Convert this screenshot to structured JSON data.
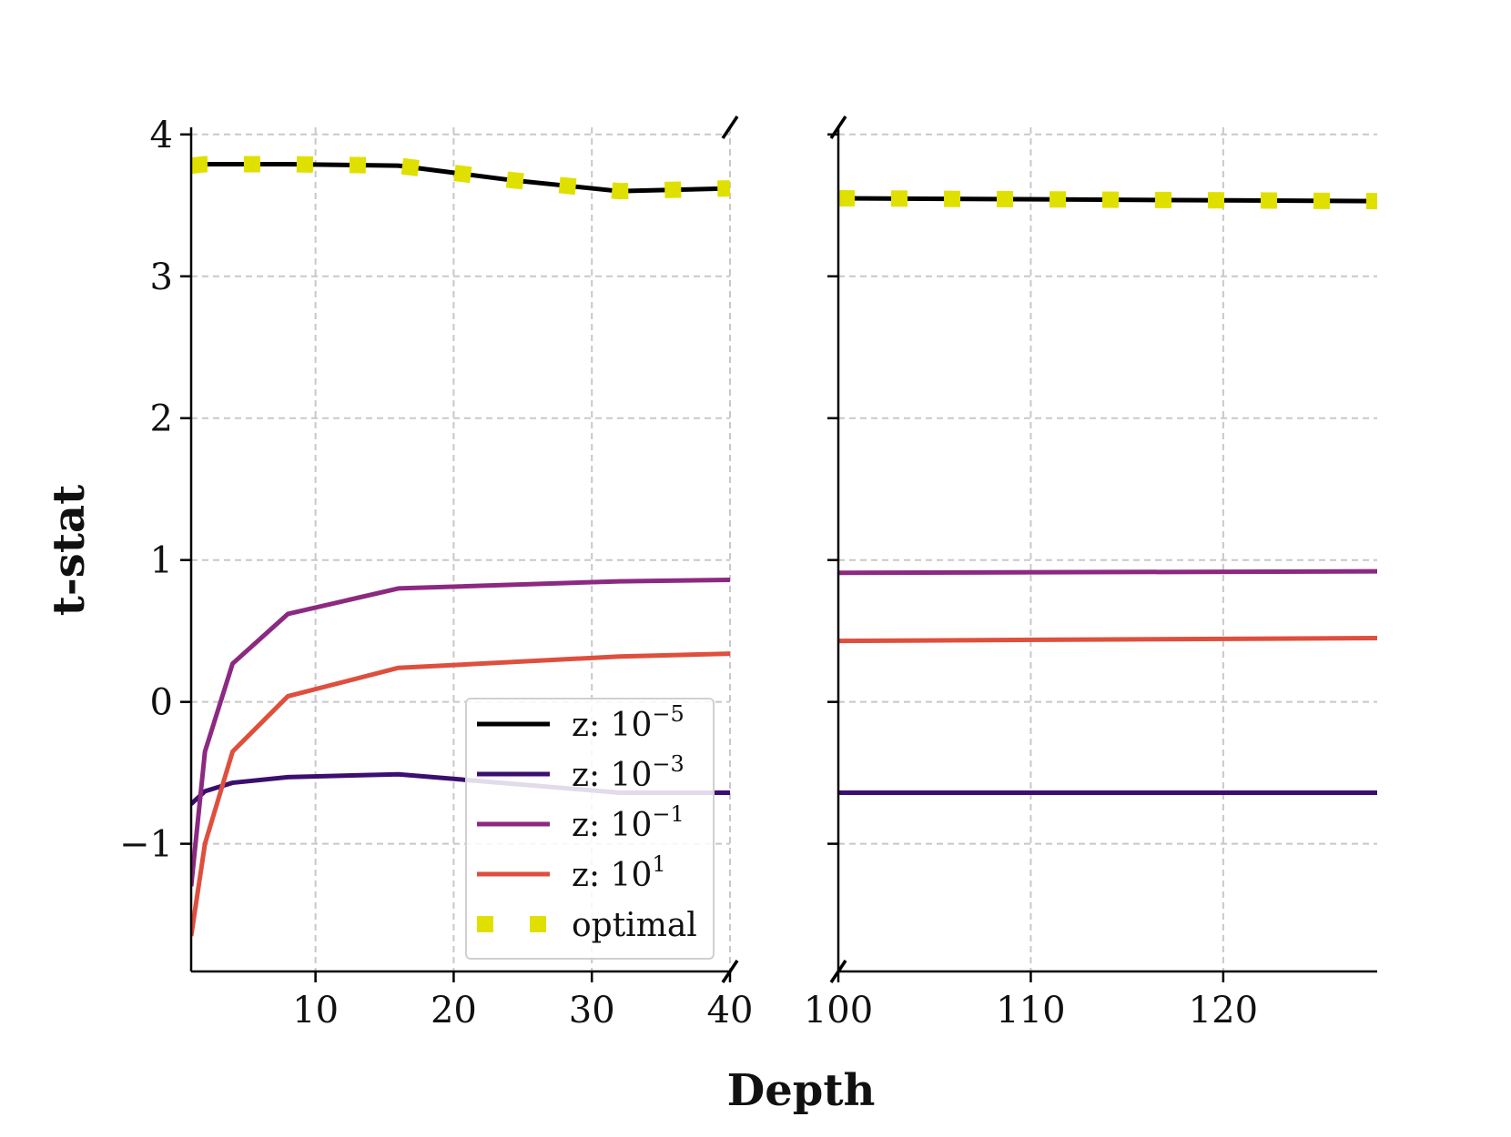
{
  "chart_data": {
    "type": "line",
    "xlabel": "Depth",
    "ylabel": "t-stat",
    "ylim": [
      -1.9,
      4.05
    ],
    "y_ticks": [
      -1,
      0,
      1,
      2,
      3,
      4
    ],
    "y_tick_labels": [
      "−1",
      "0",
      "1",
      "2",
      "3",
      "4"
    ],
    "grid": true,
    "broken_x_axis": true,
    "panels": [
      {
        "name": "left",
        "xlim": [
          1,
          40
        ],
        "x_ticks": [
          10,
          20,
          30,
          40
        ],
        "x_tick_labels": [
          "10",
          "20",
          "30",
          "40"
        ]
      },
      {
        "name": "right",
        "xlim": [
          100,
          128
        ],
        "x_ticks": [
          100,
          110,
          120
        ],
        "x_tick_labels": [
          "100",
          "110",
          "120"
        ]
      }
    ],
    "series": [
      {
        "name": "z: 10^-5",
        "label_base": "z: 10",
        "label_exp": "−5",
        "color": "#000000",
        "style": "solid",
        "x": [
          1,
          2,
          4,
          8,
          16,
          20,
          24,
          28,
          32,
          36,
          40,
          100,
          128
        ],
        "values": [
          3.78,
          3.79,
          3.79,
          3.79,
          3.78,
          3.73,
          3.68,
          3.64,
          3.6,
          3.61,
          3.62,
          3.55,
          3.53
        ]
      },
      {
        "name": "z: 10^-3",
        "label_base": "z: 10",
        "label_exp": "−3",
        "color": "#3b0f70",
        "style": "solid",
        "x": [
          1,
          2,
          4,
          8,
          16,
          32,
          40,
          100,
          128
        ],
        "values": [
          -0.72,
          -0.63,
          -0.57,
          -0.53,
          -0.51,
          -0.64,
          -0.64,
          -0.64,
          -0.64
        ]
      },
      {
        "name": "z: 10^-1",
        "label_base": "z: 10",
        "label_exp": "−1",
        "color": "#8c2981",
        "style": "solid",
        "x": [
          1,
          2,
          4,
          8,
          16,
          32,
          40,
          100,
          128
        ],
        "values": [
          -1.3,
          -0.35,
          0.27,
          0.62,
          0.8,
          0.85,
          0.86,
          0.91,
          0.92
        ]
      },
      {
        "name": "z: 10^1",
        "label_base": "z: 10",
        "label_exp": "1",
        "color": "#de4f3e",
        "style": "solid",
        "x": [
          1,
          2,
          4,
          8,
          16,
          32,
          40,
          100,
          128
        ],
        "values": [
          -1.65,
          -1.0,
          -0.35,
          0.04,
          0.24,
          0.32,
          0.34,
          0.43,
          0.45
        ]
      },
      {
        "name": "optimal",
        "label_base": "optimal",
        "label_exp": "",
        "color": "#e0e000",
        "style": "dotted",
        "x": [
          1,
          2,
          4,
          8,
          16,
          20,
          24,
          28,
          32,
          36,
          40,
          100,
          128
        ],
        "values": [
          3.78,
          3.79,
          3.79,
          3.79,
          3.78,
          3.73,
          3.68,
          3.64,
          3.6,
          3.61,
          3.62,
          3.55,
          3.53
        ]
      }
    ],
    "legend": {
      "location": "lower-right of left panel"
    }
  }
}
